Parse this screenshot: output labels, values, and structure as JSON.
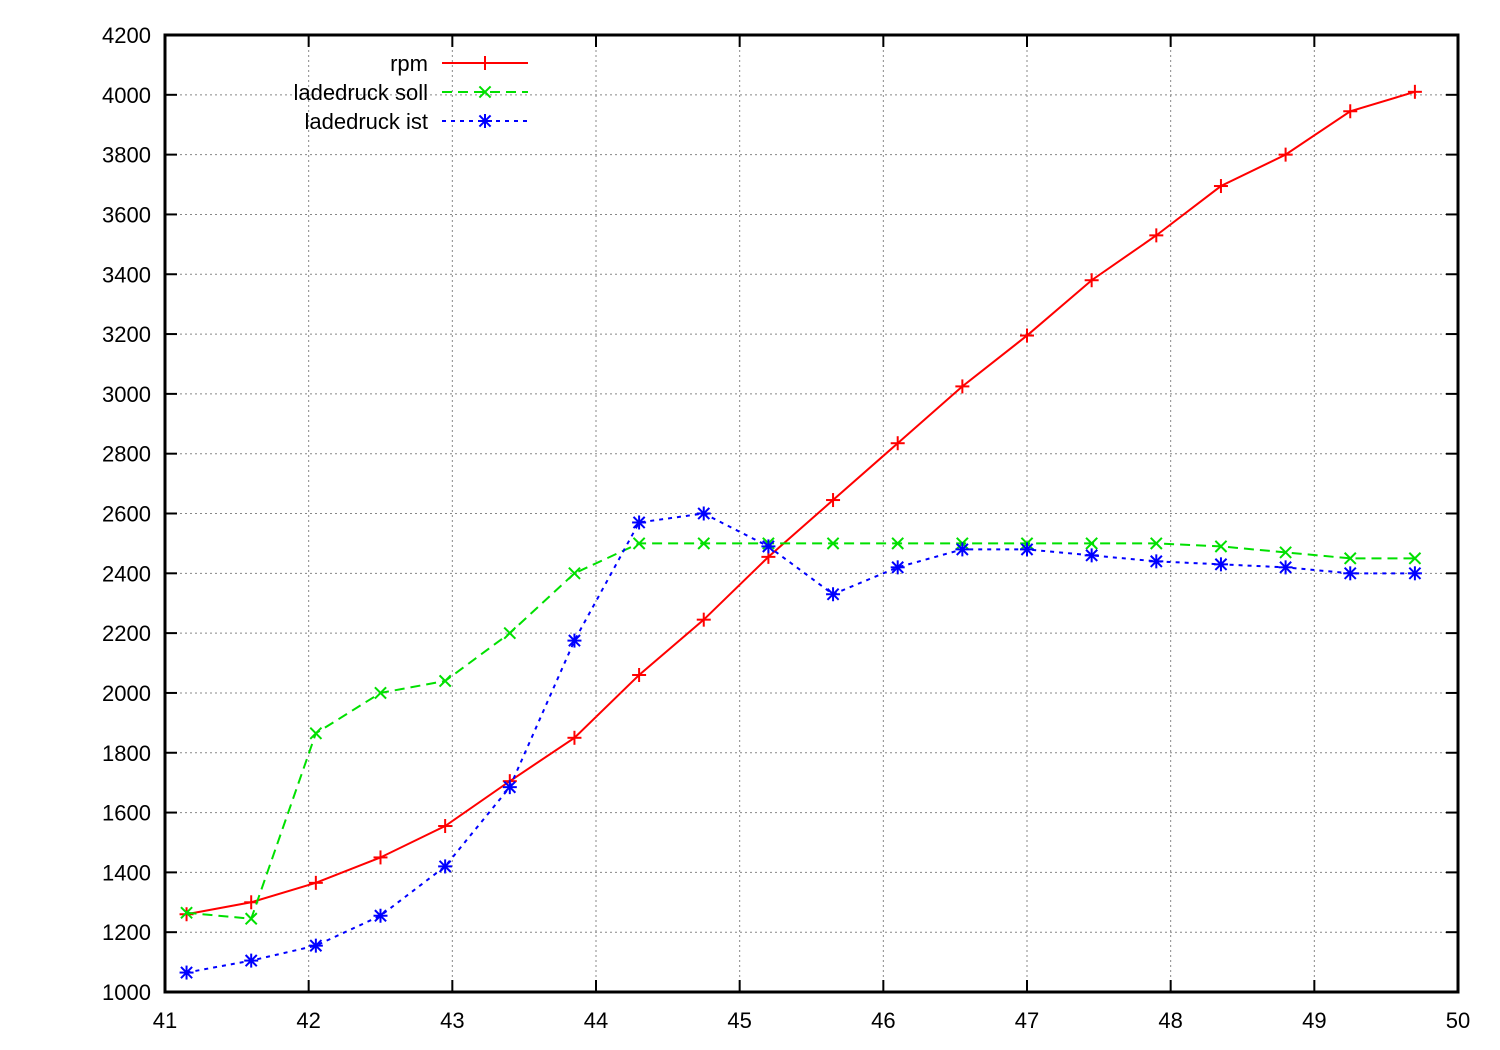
{
  "chart_data": {
    "type": "line",
    "title": "",
    "xlabel": "",
    "ylabel": "",
    "xlim": [
      41,
      50
    ],
    "ylim": [
      1000,
      4200
    ],
    "x_ticks": [
      41,
      42,
      43,
      44,
      45,
      46,
      47,
      48,
      49,
      50
    ],
    "y_ticks": [
      1000,
      1200,
      1400,
      1600,
      1800,
      2000,
      2200,
      2400,
      2600,
      2800,
      3000,
      3200,
      3400,
      3600,
      3800,
      4000,
      4200
    ],
    "grid": true,
    "legend_position": "top-left",
    "series": [
      {
        "name": "rpm",
        "color": "#ff0000",
        "line_style": "solid",
        "marker": "plus",
        "x": [
          41.15,
          41.6,
          42.05,
          42.5,
          42.95,
          43.4,
          43.85,
          44.3,
          44.75,
          45.2,
          45.65,
          46.1,
          46.55,
          47.0,
          47.45,
          47.9,
          48.35,
          48.8,
          49.25,
          49.7
        ],
        "y": [
          1260,
          1300,
          1365,
          1450,
          1555,
          1705,
          1850,
          2060,
          2245,
          2455,
          2645,
          2835,
          3025,
          3195,
          3380,
          3530,
          3695,
          3800,
          3945,
          4010
        ]
      },
      {
        "name": "ladedruck soll",
        "color": "#00e000",
        "line_style": "dashed",
        "marker": "x",
        "x": [
          41.15,
          41.6,
          42.05,
          42.5,
          42.95,
          43.4,
          43.85,
          44.3,
          44.75,
          45.2,
          45.65,
          46.1,
          46.55,
          47.0,
          47.45,
          47.9,
          48.35,
          48.8,
          49.25,
          49.7
        ],
        "y": [
          1265,
          1245,
          1865,
          2000,
          2040,
          2200,
          2400,
          2500,
          2500,
          2500,
          2500,
          2500,
          2500,
          2500,
          2500,
          2500,
          2490,
          2470,
          2450,
          2450
        ]
      },
      {
        "name": "ladedruck ist",
        "color": "#0000ff",
        "line_style": "dotted",
        "marker": "star",
        "x": [
          41.15,
          41.6,
          42.05,
          42.5,
          42.95,
          43.4,
          43.85,
          44.3,
          44.75,
          45.2,
          45.65,
          46.1,
          46.55,
          47.0,
          47.45,
          47.9,
          48.35,
          48.8,
          49.25,
          49.7
        ],
        "y": [
          1065,
          1105,
          1155,
          1255,
          1420,
          1685,
          2175,
          2570,
          2600,
          2490,
          2330,
          2420,
          2480,
          2480,
          2460,
          2440,
          2430,
          2420,
          2400,
          2400
        ]
      }
    ]
  }
}
